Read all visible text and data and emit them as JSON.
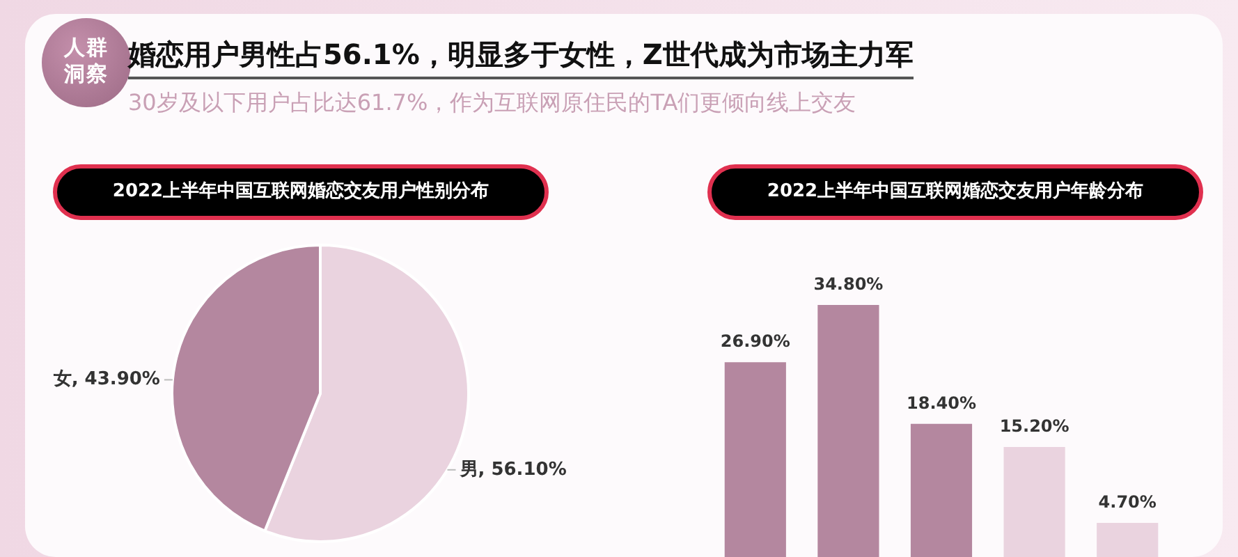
{
  "chart_data": [
    {
      "type": "other",
      "title": "婚恋用户男性占56.1%，明显多于女性，Z世代成为市场主力军",
      "subtitle": "30岁及以下用户占比达61.7%，作为互联网原住民的TA们更倾向线上交友",
      "annotations": [
        "人群洞察"
      ]
    },
    {
      "type": "pie",
      "title": "2022上半年中国互联网婚恋交友用户性别分布",
      "categories": [
        "男",
        "女"
      ],
      "values": [
        56.1,
        43.9
      ],
      "colors": [
        "#ead3df",
        "#b4879f"
      ],
      "value_labels": [
        "56.10%",
        "43.90%"
      ],
      "legend": false
    },
    {
      "type": "bar",
      "title": "2022上半年中国互联网婚恋交友用户年龄分布",
      "categories": [
        null,
        null,
        null,
        null,
        null
      ],
      "values": [
        26.9,
        34.8,
        18.4,
        15.2,
        4.7
      ],
      "colors": [
        "#b4879f",
        "#b4879f",
        "#b4879f",
        "#ead3df",
        "#ead3df"
      ],
      "value_labels": [
        "26.90%",
        "34.80%",
        "18.40%",
        "15.20%",
        "4.70%"
      ],
      "tick_labels": false,
      "legend": false
    }
  ]
}
